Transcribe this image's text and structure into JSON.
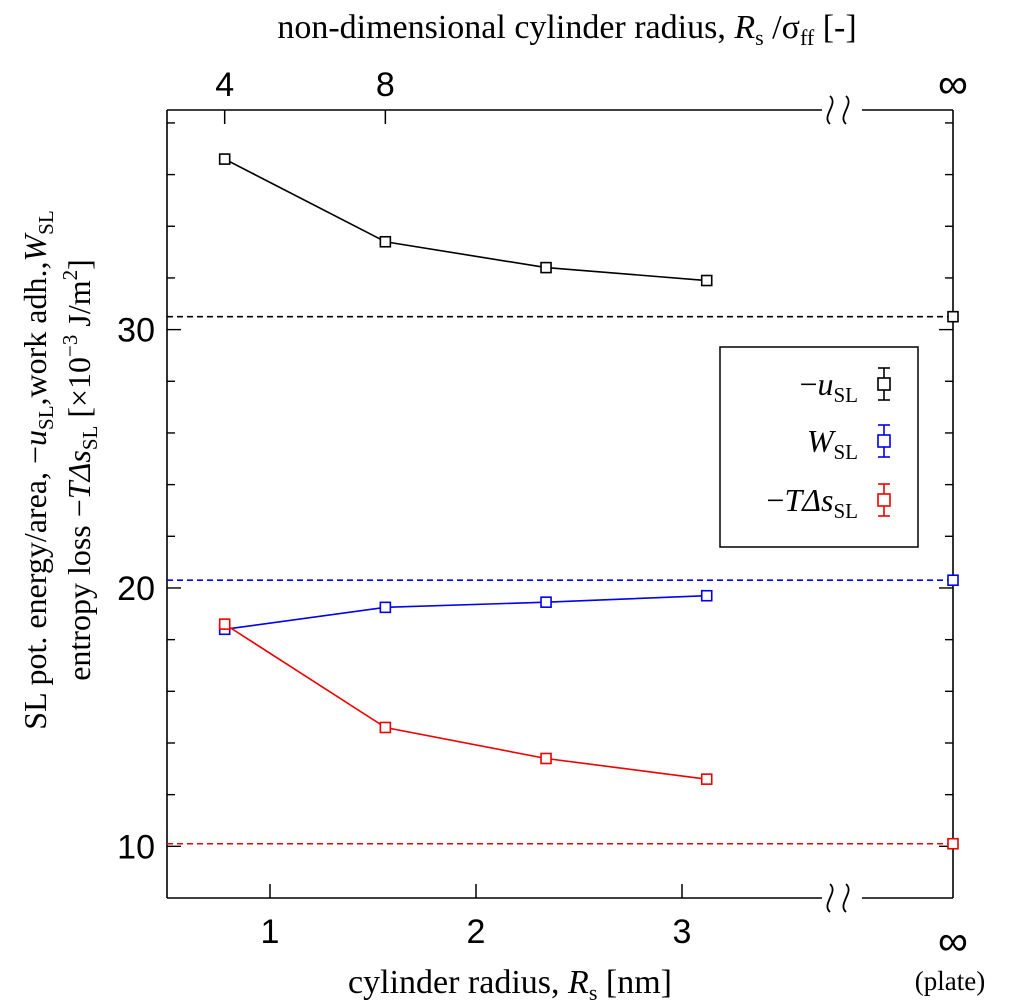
{
  "chart_data": {
    "type": "scatter",
    "title": "",
    "xlabel": {
      "prefix": "cylinder radius, ",
      "sym": "R",
      "sub": "s",
      "suffix": " [nm]"
    },
    "xlabel_top": {
      "prefix": "non-dimensional cylinder radius, ",
      "sym": "R",
      "sub": "s",
      "mid": " /σ",
      "sub2": "ff",
      "suffix": " [-]"
    },
    "ylabel_line1": {
      "prefix": "SL pot. energy/area, −",
      "sym1": "u",
      "sub1": "SL",
      "mid": ",work adh.,",
      "sym2": "W",
      "sub2": "SL"
    },
    "ylabel_line2": {
      "prefix": "entropy loss −",
      "sym": "TΔs",
      "sub": "SL",
      "unit_pre": " [×10",
      "exp": "−3",
      "unit_mid": " J/m",
      "exp2": "2",
      "unit_post": "]"
    },
    "xlim": [
      0.5,
      3.5
    ],
    "ylim": [
      8,
      38.5
    ],
    "x_ticks": [
      {
        "value": 1,
        "label": "1"
      },
      {
        "value": 2,
        "label": "2"
      },
      {
        "value": 3,
        "label": "3"
      }
    ],
    "x_top_ticks": [
      {
        "value": 0.78,
        "label": "4"
      },
      {
        "value": 1.56,
        "label": "8"
      }
    ],
    "y_ticks": [
      {
        "value": 10,
        "label": "10"
      },
      {
        "value": 20,
        "label": "20"
      },
      {
        "value": 30,
        "label": "30"
      }
    ],
    "infinity_label": "∞",
    "plate_label": "(plate)",
    "axis_break": true,
    "grid": false,
    "legend_position": "right",
    "x": [
      0.78,
      1.56,
      2.34,
      3.12
    ],
    "series": [
      {
        "key": "u",
        "label_pre": "−",
        "label_sym": "u",
        "label_sub": "SL",
        "color": "#000000",
        "values": [
          36.6,
          33.4,
          32.4,
          31.9
        ],
        "plate": 30.5
      },
      {
        "key": "W",
        "label_pre": "",
        "label_sym": "W",
        "label_sub": "SL",
        "color": "#0000ee",
        "values": [
          18.4,
          19.25,
          19.45,
          19.7
        ],
        "plate": 20.3
      },
      {
        "key": "Ts",
        "label_pre": "−",
        "label_sym": "TΔs",
        "label_sub": "SL",
        "color": "#ee0000",
        "values": [
          18.6,
          14.6,
          13.4,
          12.6
        ],
        "plate": 10.1
      }
    ]
  }
}
